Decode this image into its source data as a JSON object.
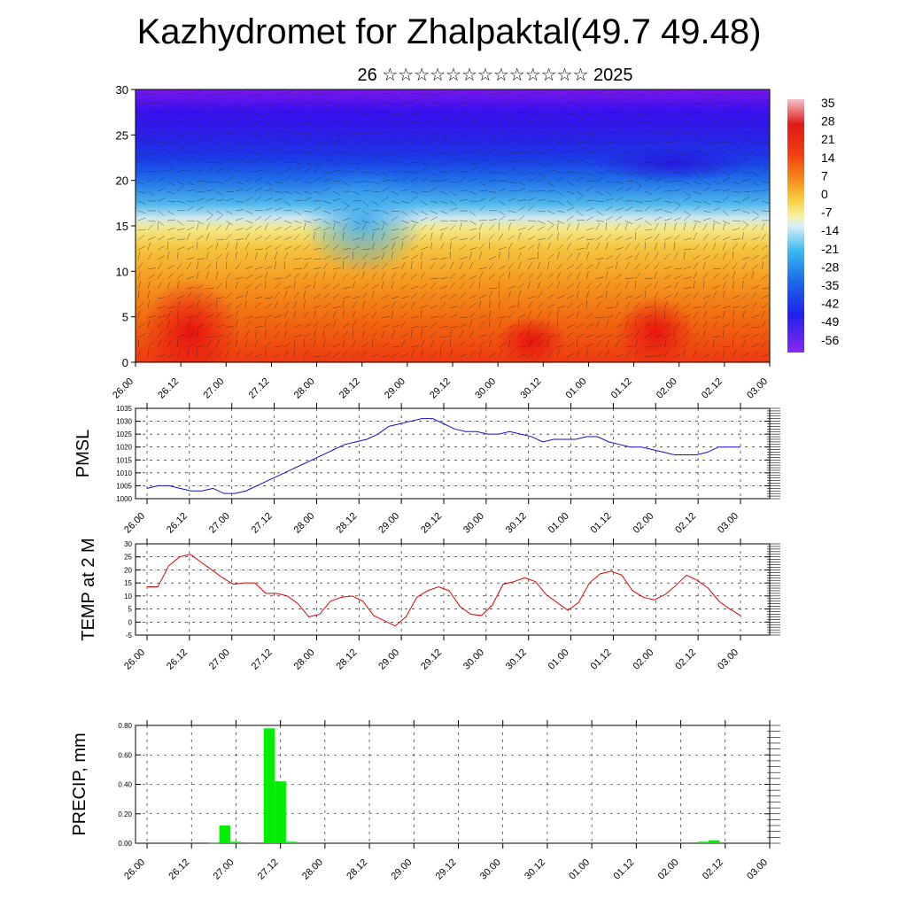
{
  "header": {
    "title": "Kazhydromet for Zhalpaktal(49.7 49.48)",
    "subtitle": "26 ☆☆☆☆☆☆☆☆☆☆☆☆☆ 2025"
  },
  "colors": {
    "pmsl_line": "#1010c8",
    "temp_line": "#e00000",
    "precip_bar": "#00ee00",
    "grid": "#000000"
  },
  "time_labels": [
    "26.00",
    "26.12",
    "27.00",
    "27.12",
    "28.00",
    "28.12",
    "29.00",
    "29.12",
    "30.00",
    "30.12",
    "01.00",
    "01.12",
    "02.00",
    "02.12",
    "03.00"
  ],
  "chart_data": [
    {
      "type": "heatmap",
      "ylim": [
        0,
        30
      ],
      "yticks": [
        "0",
        "5",
        "10",
        "15",
        "20",
        "25",
        "30"
      ],
      "legend": {
        "position": "right",
        "labels": [
          "35",
          "28",
          "21",
          "14",
          "7",
          "0",
          "-7",
          "-14",
          "-21",
          "-28",
          "-35",
          "-42",
          "-49",
          "-56"
        ]
      }
    },
    {
      "type": "line",
      "ylabel": "PMSL",
      "ylim": [
        1000,
        1035
      ],
      "yticks": [
        "1000",
        "1005",
        "1010",
        "1015",
        "1020",
        "1025",
        "1030",
        "1035"
      ],
      "values": [
        1004,
        1005,
        1005,
        1004,
        1003,
        1003,
        1004,
        1002,
        1002,
        1003,
        1005,
        1007,
        1009,
        1011,
        1013,
        1015,
        1017,
        1019,
        1021,
        1022,
        1023,
        1025,
        1028,
        1029,
        1030,
        1031,
        1031,
        1029,
        1027,
        1026,
        1026,
        1025,
        1025,
        1026,
        1025,
        1024,
        1022,
        1023,
        1023,
        1023,
        1024,
        1024,
        1022,
        1021,
        1020,
        1020,
        1019,
        1018,
        1017,
        1017,
        1017,
        1018,
        1020,
        1020,
        1020
      ]
    },
    {
      "type": "line",
      "ylabel": "TEMP at 2 M",
      "ylim": [
        -5,
        30
      ],
      "yticks": [
        "-5",
        "0",
        "5",
        "10",
        "15",
        "20",
        "25",
        "30"
      ],
      "values": [
        13.5,
        13.5,
        21.5,
        25,
        26,
        23,
        20,
        17,
        14.5,
        15,
        15,
        11,
        11,
        10,
        7,
        2,
        3,
        8,
        9.5,
        10,
        8,
        2.5,
        0.5,
        -1.5,
        2,
        9.5,
        12,
        13.5,
        12,
        6,
        3,
        2.5,
        6.5,
        14.5,
        15.5,
        17,
        15.5,
        10.5,
        7.5,
        4.5,
        7.5,
        15,
        18.5,
        19.5,
        18,
        12,
        9.5,
        8.5,
        10.5,
        14,
        18,
        16,
        13,
        8,
        5,
        2.5
      ]
    },
    {
      "type": "bar",
      "ylabel": "PRECIP, mm",
      "ylim": [
        0,
        0.8
      ],
      "yticks": [
        "0.00",
        "0.20",
        "0.40",
        "0.60",
        "0.80"
      ],
      "values": [
        0,
        0,
        0,
        0,
        0,
        0,
        0.005,
        0.12,
        0.01,
        0,
        0,
        0.78,
        0.42,
        0.01,
        0,
        0,
        0,
        0,
        0,
        0,
        0,
        0,
        0,
        0,
        0,
        0,
        0,
        0,
        0,
        0,
        0,
        0,
        0,
        0,
        0,
        0,
        0,
        0,
        0,
        0,
        0,
        0,
        0,
        0,
        0,
        0,
        0,
        0,
        0,
        0,
        0.01,
        0.02,
        0,
        0,
        0,
        0,
        0
      ]
    }
  ]
}
